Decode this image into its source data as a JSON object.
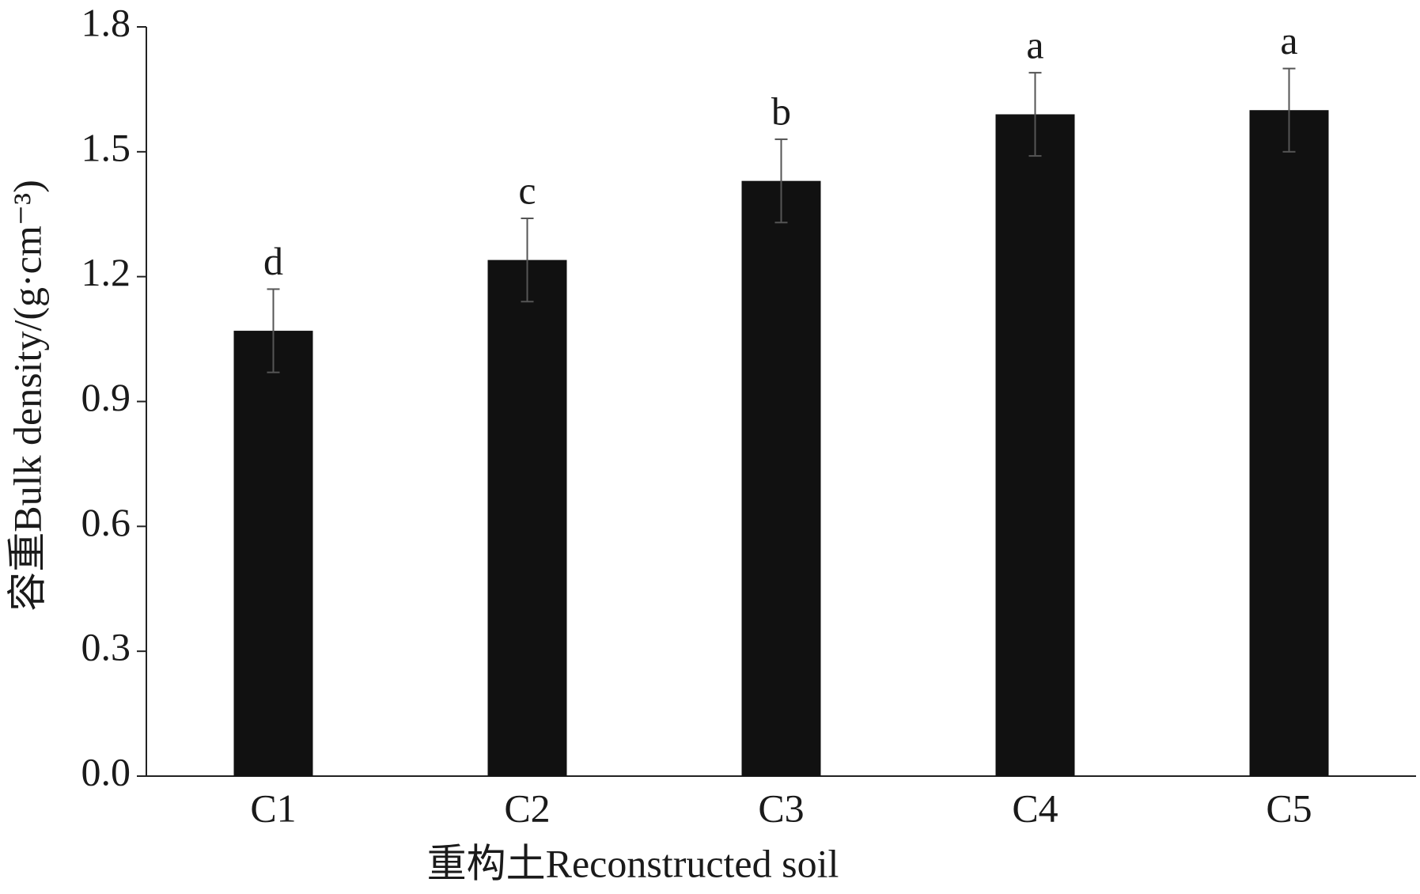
{
  "chart_data": {
    "type": "bar",
    "categories": [
      "C1",
      "C2",
      "C3",
      "C4",
      "C5"
    ],
    "values": [
      1.07,
      1.24,
      1.43,
      1.59,
      1.6
    ],
    "errors": [
      0.1,
      0.1,
      0.1,
      0.1,
      0.1
    ],
    "annotations": [
      "d",
      "c",
      "b",
      "a",
      "a"
    ],
    "color": "#111111",
    "x_label": "重构土Reconstructed soil",
    "y_label": "容重Bulk density/(g·cm⁻³)",
    "ylim": [
      0,
      1.8
    ],
    "yticks": [
      {
        "value": 0,
        "label": "0.0"
      },
      0.3,
      0.6,
      0.9,
      1.2,
      1.5,
      1.8
    ],
    "grid": false
  }
}
